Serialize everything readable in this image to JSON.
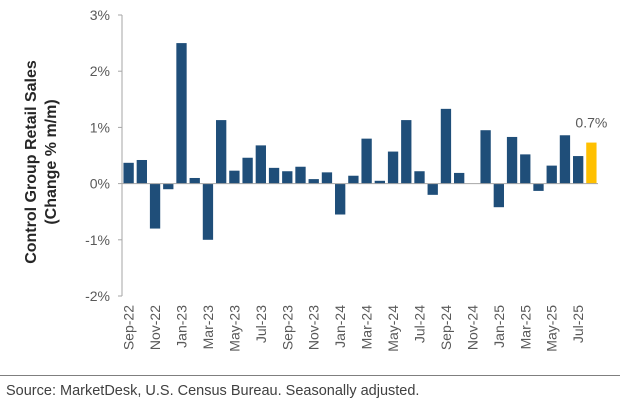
{
  "chart_data": {
    "type": "bar",
    "ylabel_line1": "Control Group Retail Sales",
    "ylabel_line2": "(Change % m/m)",
    "ylim": [
      -2,
      3
    ],
    "yticks": [
      3,
      2,
      1,
      0,
      -1,
      -2
    ],
    "ytick_labels": [
      "3%",
      "2%",
      "1%",
      "0%",
      "-1%",
      "-2%"
    ],
    "categories": [
      "Sep-22",
      "Oct-22",
      "Nov-22",
      "Dec-22",
      "Jan-23",
      "Feb-23",
      "Mar-23",
      "Apr-23",
      "May-23",
      "Jun-23",
      "Jul-23",
      "Aug-23",
      "Sep-23",
      "Oct-23",
      "Nov-23",
      "Dec-23",
      "Jan-24",
      "Feb-24",
      "Mar-24",
      "Apr-24",
      "May-24",
      "Jun-24",
      "Jul-24",
      "Aug-24",
      "Sep-24",
      "Oct-24",
      "Nov-24",
      "Dec-24",
      "Jan-25",
      "Feb-25",
      "Mar-25",
      "Apr-25",
      "May-25",
      "Jun-25",
      "Jul-25",
      "Aug-25"
    ],
    "xtick_labels": [
      "Sep-22",
      "Nov-22",
      "Jan-23",
      "Mar-23",
      "May-23",
      "Jul-23",
      "Sep-23",
      "Nov-23",
      "Jan-24",
      "Mar-24",
      "May-24",
      "Jul-24",
      "Sep-24",
      "Nov-24",
      "Jan-25",
      "Mar-25",
      "May-25",
      "Jul-25"
    ],
    "values": [
      0.37,
      0.42,
      -0.8,
      -0.1,
      2.5,
      0.1,
      -1.0,
      1.13,
      0.23,
      0.46,
      0.68,
      0.28,
      0.22,
      0.3,
      0.08,
      0.2,
      -0.55,
      0.14,
      0.8,
      0.05,
      0.57,
      1.13,
      0.22,
      -0.2,
      1.33,
      0.19,
      0.0,
      0.95,
      -0.42,
      0.83,
      0.52,
      -0.13,
      0.32,
      0.86,
      0.49,
      0.73
    ],
    "highlight_index": 35,
    "highlight_label": "0.7%",
    "colors": {
      "bar": "#1f4e79",
      "highlight": "#ffc000",
      "axis": "#a6a6a6"
    }
  },
  "footer": {
    "source": "Source: MarketDesk, U.S. Census Bureau. Seasonally adjusted."
  }
}
